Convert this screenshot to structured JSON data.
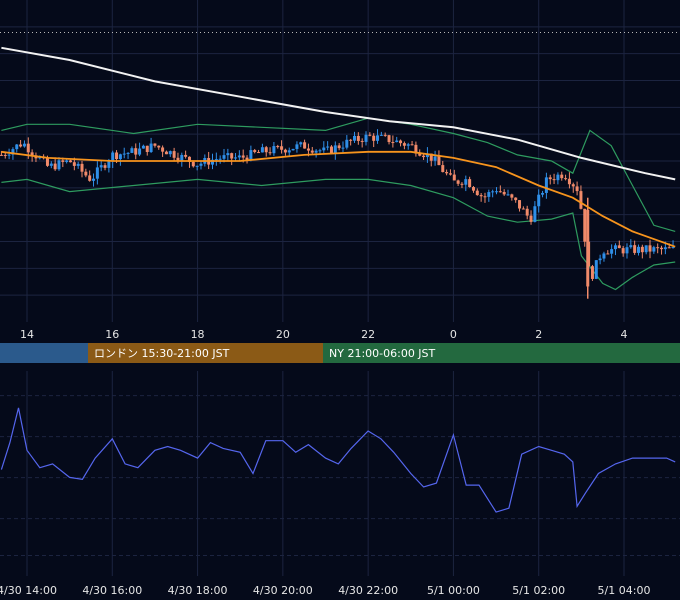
{
  "theme": {
    "background": "#050a1a",
    "grid": "#1c2440",
    "bull": "#2f8fe8",
    "bear": "#f08a6a",
    "ma_fast": "#f7941d",
    "ma_slow": "#f2f2f2",
    "bands": "#2e9b5f",
    "oscillator": "#5566ee",
    "level_dotted": "#b8b8b8",
    "session_tokyo": "#2b5a8c",
    "session_london": "#8b5a16",
    "session_ny": "#23693f"
  },
  "sessions": [
    {
      "label": "",
      "color": "#2b5a8c"
    },
    {
      "label": "ロンドン 15:30-21:00 JST",
      "color": "#8b5a16"
    },
    {
      "label": "NY 21:00-06:00 JST",
      "color": "#23693f"
    }
  ],
  "chart_data": [
    {
      "type": "candlestick",
      "title": "",
      "x_hours_tick_labels": [
        "14",
        "16",
        "18",
        "20",
        "22",
        "0",
        "2",
        "4"
      ],
      "x_range_hours": [
        13.4,
        29.2
      ],
      "y_range": [
        0,
        100
      ],
      "price_path": {
        "x": [
          13.4,
          13.9,
          14.5,
          15.0,
          15.5,
          16.0,
          16.5,
          17.0,
          17.5,
          18.0,
          18.5,
          19.0,
          19.5,
          20.0,
          20.5,
          21.0,
          21.5,
          22.0,
          22.5,
          23.0,
          23.5,
          24.0,
          24.3,
          24.7,
          25.0,
          25.5,
          25.8,
          26.2,
          26.6,
          26.9,
          27.0,
          27.2,
          27.5,
          28.0,
          28.5,
          29.2
        ],
        "y": [
          52,
          56,
          48,
          50,
          44,
          52,
          53,
          55,
          52,
          49,
          51,
          51,
          53,
          54,
          55,
          53,
          56,
          58,
          57,
          55,
          51,
          43,
          44,
          38,
          41,
          36,
          31,
          44,
          46,
          41,
          34,
          11,
          21,
          21,
          21,
          21
        ]
      },
      "ma_fast": {
        "x": [
          13.4,
          14.5,
          16.0,
          17.5,
          19.0,
          20.5,
          22.0,
          23.0,
          24.0,
          25.0,
          26.0,
          26.8,
          27.5,
          28.2,
          29.2
        ],
        "y": [
          53,
          51,
          50,
          50,
          50,
          52,
          53,
          53,
          51,
          48,
          42,
          38,
          32,
          27,
          22
        ]
      },
      "ma_slow": {
        "x": [
          13.4,
          15.0,
          17.0,
          19.0,
          21.0,
          22.5,
          24.0,
          25.5,
          27.0,
          28.5,
          29.2
        ],
        "y": [
          87,
          83,
          76,
          71,
          66,
          63,
          61,
          57,
          51,
          46,
          44
        ]
      },
      "band_upper": {
        "x": [
          13.4,
          14.0,
          15.0,
          16.5,
          18.0,
          19.5,
          21.0,
          22.0,
          23.0,
          24.0,
          24.8,
          25.5,
          26.3,
          26.8,
          27.2,
          27.7,
          28.2,
          28.7,
          29.2
        ],
        "y": [
          60,
          62,
          62,
          59,
          62,
          61,
          60,
          64,
          62,
          59,
          56,
          52,
          50,
          46,
          60,
          55,
          42,
          29,
          27
        ]
      },
      "band_lower": {
        "x": [
          13.4,
          14.0,
          15.0,
          16.5,
          18.0,
          19.5,
          21.0,
          22.0,
          23.0,
          24.0,
          24.8,
          25.5,
          26.3,
          26.8,
          27.0,
          27.5,
          27.8,
          28.2,
          28.7,
          29.2
        ],
        "y": [
          43,
          44,
          40,
          42,
          44,
          42,
          44,
          44,
          42,
          38,
          32,
          30,
          31,
          33,
          19,
          10,
          8,
          12,
          16,
          17
        ]
      },
      "dotted_level_y": 92
    },
    {
      "type": "line",
      "title": "",
      "x_tick_labels": [
        "4/30 14:00",
        "4/30 16:00",
        "4/30 18:00",
        "4/30 20:00",
        "4/30 22:00",
        "5/1 00:00",
        "5/1 02:00",
        "5/1 04:00"
      ],
      "y_range": [
        0,
        100
      ],
      "x": [
        13.4,
        13.6,
        13.8,
        14.0,
        14.3,
        14.6,
        15.0,
        15.3,
        15.6,
        16.0,
        16.3,
        16.6,
        17.0,
        17.3,
        17.6,
        18.0,
        18.3,
        18.6,
        19.0,
        19.3,
        19.6,
        20.0,
        20.3,
        20.6,
        21.0,
        21.3,
        21.6,
        22.0,
        22.3,
        22.6,
        23.0,
        23.3,
        23.6,
        24.0,
        24.3,
        24.6,
        25.0,
        25.3,
        25.6,
        26.0,
        26.3,
        26.6,
        26.8,
        26.9,
        27.1,
        27.4,
        27.8,
        28.2,
        28.6,
        29.0,
        29.2
      ],
      "y": [
        52,
        66,
        84,
        62,
        53,
        55,
        48,
        47,
        58,
        68,
        55,
        53,
        62,
        64,
        62,
        58,
        66,
        63,
        61,
        50,
        67,
        67,
        61,
        65,
        58,
        55,
        63,
        72,
        68,
        61,
        50,
        43,
        45,
        70,
        44,
        44,
        30,
        32,
        60,
        64,
        62,
        60,
        56,
        33,
        40,
        50,
        55,
        58,
        58,
        58,
        56
      ]
    }
  ]
}
